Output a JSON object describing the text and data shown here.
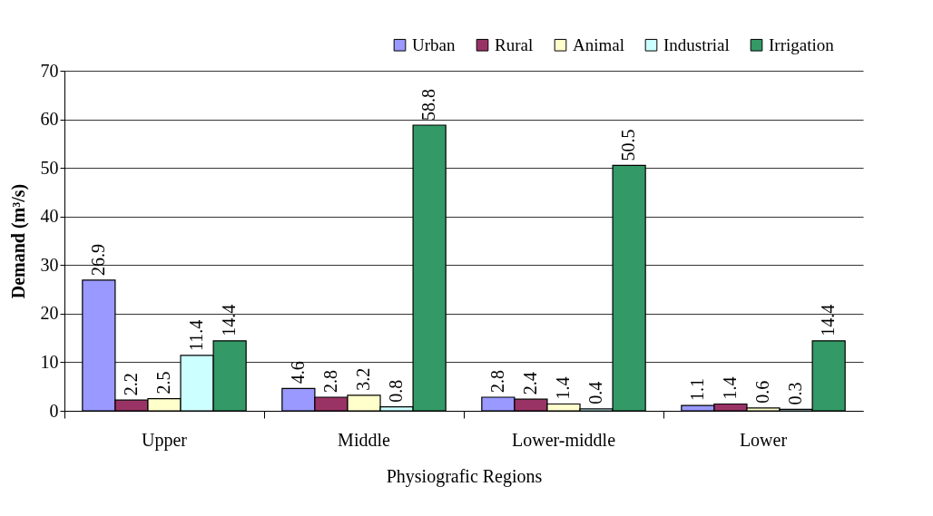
{
  "chart_data": {
    "type": "bar",
    "xlabel": "Physiografic Regions",
    "ylabel": "Demand   (m³/s)",
    "categories": [
      "Upper",
      "Middle",
      "Lower-middle",
      "Lower"
    ],
    "series": [
      {
        "name": "Urban",
        "color": "#9999ff",
        "values": [
          26.9,
          4.6,
          2.8,
          1.1
        ]
      },
      {
        "name": "Rural",
        "color": "#993366",
        "values": [
          2.2,
          2.8,
          2.4,
          1.4
        ]
      },
      {
        "name": "Animal",
        "color": "#ffffcc",
        "values": [
          2.5,
          3.2,
          1.4,
          0.6
        ]
      },
      {
        "name": "Industrial",
        "color": "#ccffff",
        "values": [
          11.4,
          0.8,
          0.4,
          0.3
        ]
      },
      {
        "name": "Irrigation",
        "color": "#339966",
        "values": [
          14.4,
          58.8,
          50.5,
          14.4
        ]
      }
    ],
    "ylim": [
      0,
      70
    ],
    "yticks": [
      0,
      10,
      20,
      30,
      40,
      50,
      60,
      70
    ],
    "grid": "y",
    "legend": "top right",
    "data_labels": true
  }
}
